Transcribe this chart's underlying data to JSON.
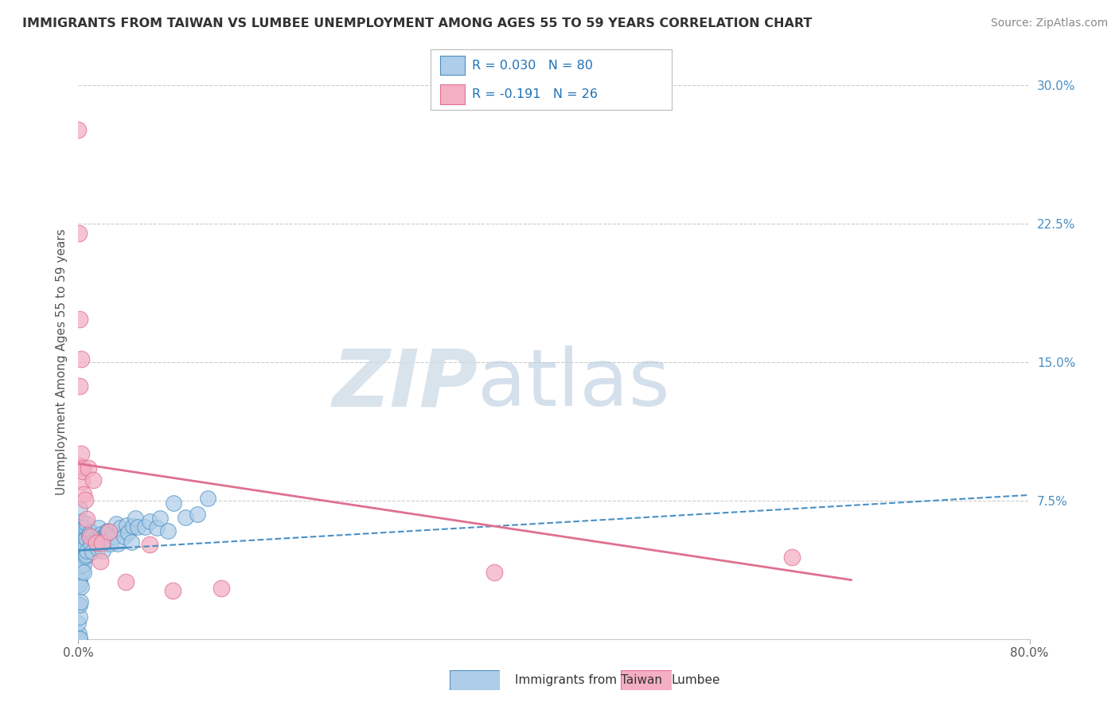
{
  "title": "IMMIGRANTS FROM TAIWAN VS LUMBEE UNEMPLOYMENT AMONG AGES 55 TO 59 YEARS CORRELATION CHART",
  "source": "Source: ZipAtlas.com",
  "ylabel": "Unemployment Among Ages 55 to 59 years",
  "xlabel_blue": "Immigrants from Taiwan",
  "xlabel_pink": "Lumbee",
  "xlim": [
    0.0,
    0.8
  ],
  "ylim": [
    0.0,
    0.3
  ],
  "xtick_labels": [
    "0.0%",
    "80.0%"
  ],
  "ytick_vals": [
    0.0,
    0.075,
    0.15,
    0.225,
    0.3
  ],
  "ytick_labels": [
    "",
    "7.5%",
    "15.0%",
    "22.5%",
    "30.0%"
  ],
  "grid_color": "#cccccc",
  "background_color": "#ffffff",
  "blue_R": 0.03,
  "blue_N": 80,
  "pink_R": -0.191,
  "pink_N": 26,
  "blue_color": "#aecde8",
  "pink_color": "#f4afc3",
  "blue_edge_color": "#4a90c4",
  "pink_edge_color": "#e07090",
  "blue_line_color": "#4a90c4",
  "pink_line_color": "#e07090",
  "watermark_zip": "ZIP",
  "watermark_atlas": "atlas",
  "blue_scatter_x": [
    0.0,
    0.0,
    0.0,
    0.0,
    0.0,
    0.0,
    0.0,
    0.0,
    0.0,
    0.0,
    0.001,
    0.001,
    0.001,
    0.001,
    0.001,
    0.001,
    0.001,
    0.001,
    0.002,
    0.002,
    0.002,
    0.002,
    0.002,
    0.003,
    0.003,
    0.003,
    0.003,
    0.004,
    0.004,
    0.004,
    0.005,
    0.005,
    0.005,
    0.006,
    0.006,
    0.007,
    0.007,
    0.008,
    0.008,
    0.009,
    0.01,
    0.01,
    0.011,
    0.012,
    0.013,
    0.014,
    0.015,
    0.016,
    0.017,
    0.018,
    0.019,
    0.02,
    0.021,
    0.022,
    0.023,
    0.024,
    0.025,
    0.026,
    0.027,
    0.028,
    0.03,
    0.032,
    0.034,
    0.036,
    0.038,
    0.04,
    0.042,
    0.044,
    0.046,
    0.048,
    0.05,
    0.055,
    0.06,
    0.065,
    0.07,
    0.075,
    0.08,
    0.09,
    0.1,
    0.11
  ],
  "blue_scatter_y": [
    0.0,
    0.0,
    0.0,
    0.0,
    0.01,
    0.02,
    0.03,
    0.04,
    0.05,
    0.06,
    0.0,
    0.01,
    0.02,
    0.03,
    0.04,
    0.05,
    0.06,
    0.07,
    0.02,
    0.03,
    0.04,
    0.05,
    0.06,
    0.03,
    0.04,
    0.05,
    0.06,
    0.04,
    0.05,
    0.06,
    0.04,
    0.05,
    0.06,
    0.04,
    0.055,
    0.045,
    0.06,
    0.05,
    0.06,
    0.055,
    0.05,
    0.06,
    0.055,
    0.05,
    0.055,
    0.05,
    0.055,
    0.05,
    0.06,
    0.055,
    0.06,
    0.055,
    0.05,
    0.055,
    0.06,
    0.055,
    0.06,
    0.055,
    0.05,
    0.06,
    0.055,
    0.06,
    0.055,
    0.06,
    0.055,
    0.06,
    0.06,
    0.055,
    0.06,
    0.065,
    0.06,
    0.06,
    0.065,
    0.06,
    0.065,
    0.06,
    0.07,
    0.065,
    0.07,
    0.075
  ],
  "pink_scatter_x": [
    0.0,
    0.0,
    0.001,
    0.001,
    0.001,
    0.002,
    0.002,
    0.003,
    0.003,
    0.004,
    0.005,
    0.006,
    0.007,
    0.008,
    0.01,
    0.012,
    0.015,
    0.018,
    0.02,
    0.025,
    0.04,
    0.06,
    0.08,
    0.12,
    0.35,
    0.6
  ],
  "pink_scatter_y": [
    0.275,
    0.22,
    0.175,
    0.14,
    0.095,
    0.15,
    0.1,
    0.095,
    0.085,
    0.09,
    0.08,
    0.075,
    0.065,
    0.095,
    0.055,
    0.085,
    0.05,
    0.04,
    0.055,
    0.06,
    0.03,
    0.05,
    0.025,
    0.02,
    0.035,
    0.042
  ],
  "blue_line_x0": 0.0,
  "blue_line_x1": 0.8,
  "blue_line_y0": 0.048,
  "blue_line_y1": 0.078,
  "pink_line_x0": 0.0,
  "pink_line_x1": 0.65,
  "pink_line_y0": 0.095,
  "pink_line_y1": 0.032
}
